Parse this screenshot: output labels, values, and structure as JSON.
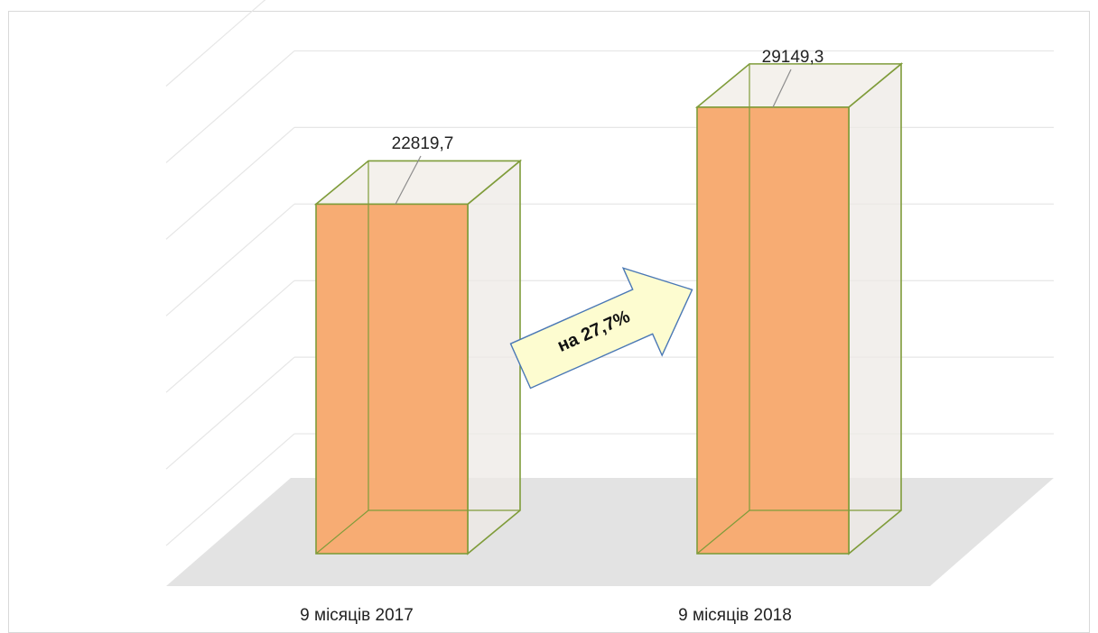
{
  "chart_data": {
    "type": "bar",
    "categories": [
      "9 місяців 2017",
      "9 місяців 2018"
    ],
    "values": [
      22819.7,
      29149.3
    ],
    "data_labels": [
      "22819,7",
      "29149,3"
    ],
    "ylim": [
      0,
      35000
    ],
    "grid": true,
    "legend": "none",
    "annotation": "на 27,7%",
    "colors": {
      "bar_front": "#f7ac73",
      "bar_outline": "#7f9c3a",
      "gridline": "#e6e6e6",
      "floor": "#e3e3e3",
      "arrow_fill": "#fdfcd0",
      "arrow_stroke": "#4a78b5"
    }
  }
}
